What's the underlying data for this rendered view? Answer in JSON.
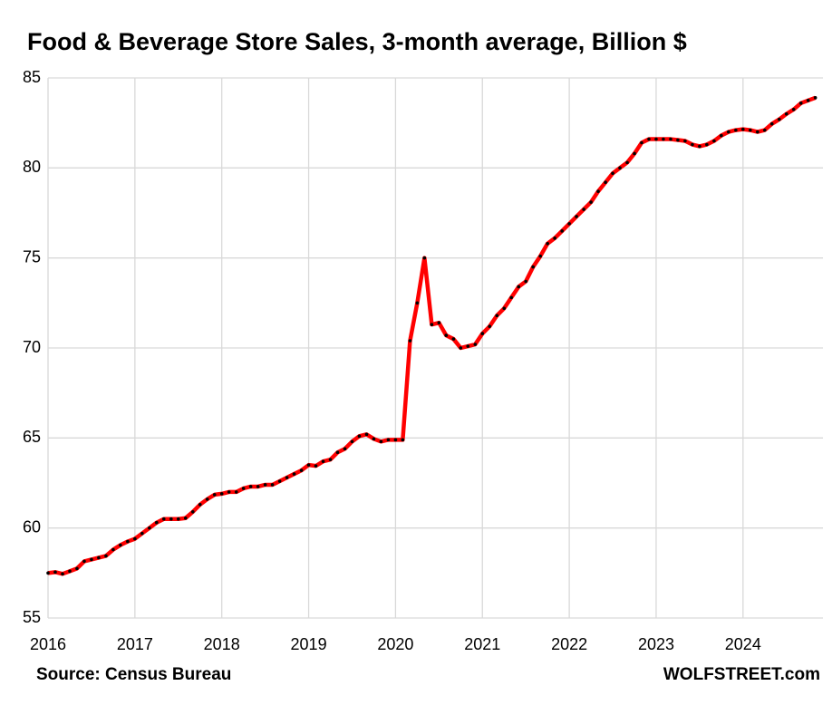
{
  "chart_data": {
    "type": "line",
    "title": "Food & Beverage Store Sales, 3-month average, Billion $",
    "source": "Source: Census Bureau",
    "credit": "WOLFSTREET.com",
    "x": [
      2016,
      2016.083,
      2016.167,
      2016.25,
      2016.333,
      2016.417,
      2016.5,
      2016.583,
      2016.667,
      2016.75,
      2016.833,
      2016.917,
      2017,
      2017.083,
      2017.167,
      2017.25,
      2017.333,
      2017.417,
      2017.5,
      2017.583,
      2017.667,
      2017.75,
      2017.833,
      2017.917,
      2018,
      2018.083,
      2018.167,
      2018.25,
      2018.333,
      2018.417,
      2018.5,
      2018.583,
      2018.667,
      2018.75,
      2018.833,
      2018.917,
      2019,
      2019.083,
      2019.167,
      2019.25,
      2019.333,
      2019.417,
      2019.5,
      2019.583,
      2019.667,
      2019.75,
      2019.833,
      2019.917,
      2020,
      2020.083,
      2020.167,
      2020.25,
      2020.333,
      2020.417,
      2020.5,
      2020.583,
      2020.667,
      2020.75,
      2020.833,
      2020.917,
      2021,
      2021.083,
      2021.167,
      2021.25,
      2021.333,
      2021.417,
      2021.5,
      2021.583,
      2021.667,
      2021.75,
      2021.833,
      2021.917,
      2022,
      2022.083,
      2022.167,
      2022.25,
      2022.333,
      2022.417,
      2022.5,
      2022.583,
      2022.667,
      2022.75,
      2022.833,
      2022.917,
      2023,
      2023.083,
      2023.167,
      2023.25,
      2023.333,
      2023.417,
      2023.5,
      2023.583,
      2023.667,
      2023.75,
      2023.833,
      2023.917,
      2024,
      2024.083,
      2024.167,
      2024.25,
      2024.333,
      2024.417,
      2024.5,
      2024.583,
      2024.667,
      2024.75,
      2024.833
    ],
    "series": [
      {
        "name": "Food & Beverage Store Sales",
        "color": "#ff0000",
        "marker_color": "#000000",
        "values": [
          57.5,
          57.55,
          57.45,
          57.6,
          57.75,
          58.15,
          58.25,
          58.35,
          58.45,
          58.8,
          59.05,
          59.25,
          59.4,
          59.7,
          60.0,
          60.3,
          60.5,
          60.5,
          60.5,
          60.55,
          60.9,
          61.3,
          61.6,
          61.85,
          61.9,
          62.0,
          62.0,
          62.2,
          62.3,
          62.3,
          62.4,
          62.4,
          62.6,
          62.8,
          63.0,
          63.2,
          63.5,
          63.45,
          63.7,
          63.8,
          64.2,
          64.4,
          64.8,
          65.1,
          65.2,
          64.95,
          64.8,
          64.9,
          64.9,
          64.9,
          70.4,
          72.5,
          75.0,
          71.3,
          71.4,
          70.7,
          70.5,
          70.0,
          70.1,
          70.2,
          70.8,
          71.2,
          71.8,
          72.2,
          72.8,
          73.4,
          73.7,
          74.5,
          75.1,
          75.8,
          76.1,
          76.5,
          76.9,
          77.3,
          77.7,
          78.1,
          78.7,
          79.2,
          79.7,
          80.0,
          80.3,
          80.8,
          81.4,
          81.6,
          81.6,
          81.6,
          81.6,
          81.55,
          81.5,
          81.3,
          81.2,
          81.3,
          81.5,
          81.8,
          82.0,
          82.1,
          82.15,
          82.1,
          82.0,
          82.1,
          82.45,
          82.7,
          83.0,
          83.25,
          83.6,
          83.75,
          83.9
        ]
      }
    ],
    "xlim": [
      2016,
      2024.92
    ],
    "xticks": [
      2016,
      2017,
      2018,
      2019,
      2020,
      2021,
      2022,
      2023,
      2024
    ],
    "ylim": [
      55,
      85
    ],
    "yticks": [
      55,
      60,
      65,
      70,
      75,
      80,
      85
    ],
    "grid": true
  }
}
